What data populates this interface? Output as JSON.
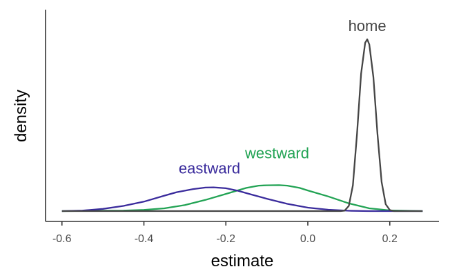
{
  "chart_data": {
    "type": "line",
    "xlabel": "estimate",
    "ylabel": "density",
    "xlim": [
      -0.64,
      0.32
    ],
    "ylim": [
      0,
      1.08
    ],
    "x_ticks": [
      -0.6,
      -0.4,
      -0.2,
      0.0,
      0.2
    ],
    "x_tick_labels": [
      "-0.6",
      "-0.4",
      "-0.2",
      "0.0",
      "0.2"
    ],
    "grid": false,
    "legend": "none (direct labels)",
    "series": [
      {
        "name": "home",
        "color": "#454545",
        "label_at": [
          0.145,
          1.0
        ],
        "points": [
          [
            -0.6,
            0.0
          ],
          [
            0.08,
            0.0
          ],
          [
            0.09,
            0.003
          ],
          [
            0.1,
            0.03
          ],
          [
            0.11,
            0.15
          ],
          [
            0.12,
            0.45
          ],
          [
            0.13,
            0.8
          ],
          [
            0.14,
            0.98
          ],
          [
            0.145,
            1.0
          ],
          [
            0.15,
            0.97
          ],
          [
            0.16,
            0.78
          ],
          [
            0.17,
            0.45
          ],
          [
            0.18,
            0.17
          ],
          [
            0.19,
            0.04
          ],
          [
            0.2,
            0.006
          ],
          [
            0.21,
            0.0
          ],
          [
            0.28,
            0.0
          ]
        ]
      },
      {
        "name": "westward",
        "color": "#22a354",
        "label_at": [
          -0.075,
          0.26
        ],
        "points": [
          [
            -0.6,
            0.0
          ],
          [
            -0.45,
            0.003
          ],
          [
            -0.4,
            0.007
          ],
          [
            -0.35,
            0.016
          ],
          [
            -0.3,
            0.035
          ],
          [
            -0.25,
            0.065
          ],
          [
            -0.2,
            0.1
          ],
          [
            -0.15,
            0.135
          ],
          [
            -0.12,
            0.148
          ],
          [
            -0.1,
            0.15
          ],
          [
            -0.07,
            0.151
          ],
          [
            -0.05,
            0.148
          ],
          [
            -0.02,
            0.135
          ],
          [
            0.0,
            0.12
          ],
          [
            0.05,
            0.085
          ],
          [
            0.1,
            0.045
          ],
          [
            0.15,
            0.016
          ],
          [
            0.2,
            0.004
          ],
          [
            0.28,
            0.0
          ]
        ]
      },
      {
        "name": "eastward",
        "color": "#3a2b9c",
        "label_at": [
          -0.24,
          0.17
        ],
        "points": [
          [
            -0.6,
            0.0
          ],
          [
            -0.55,
            0.003
          ],
          [
            -0.5,
            0.013
          ],
          [
            -0.45,
            0.03
          ],
          [
            -0.4,
            0.055
          ],
          [
            -0.35,
            0.09
          ],
          [
            -0.32,
            0.11
          ],
          [
            -0.28,
            0.128
          ],
          [
            -0.25,
            0.137
          ],
          [
            -0.23,
            0.138
          ],
          [
            -0.2,
            0.133
          ],
          [
            -0.17,
            0.118
          ],
          [
            -0.14,
            0.098
          ],
          [
            -0.1,
            0.072
          ],
          [
            -0.05,
            0.042
          ],
          [
            0.0,
            0.02
          ],
          [
            0.05,
            0.008
          ],
          [
            0.1,
            0.002
          ],
          [
            0.15,
            0.0
          ],
          [
            0.28,
            0.0
          ]
        ]
      }
    ]
  }
}
